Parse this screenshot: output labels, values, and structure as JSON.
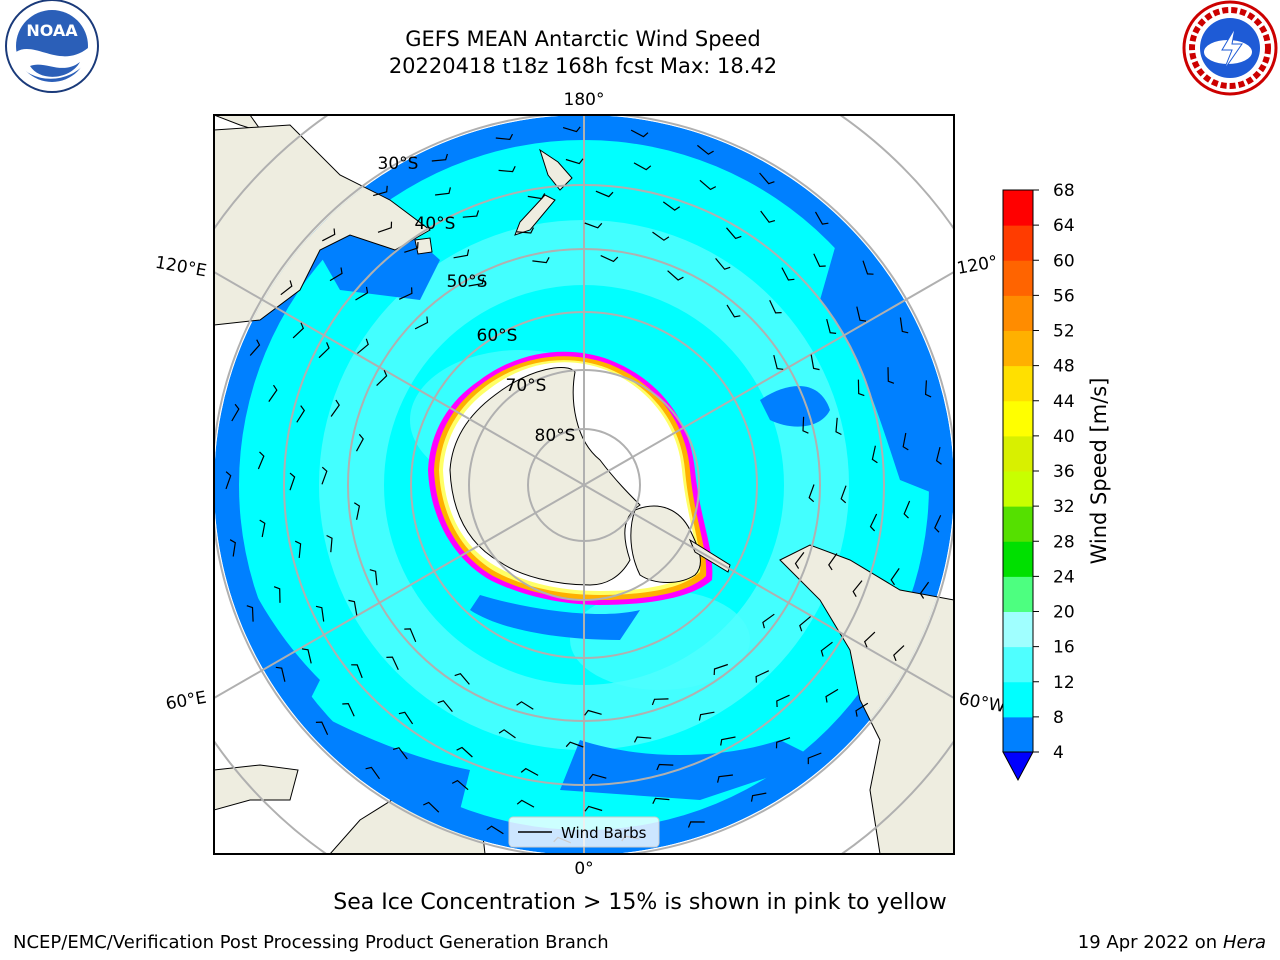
{
  "header": {
    "title_line1": "GEFS MEAN Antarctic Wind Speed",
    "title_line2": "20220418 t18z 168h fcst   Max: 18.42"
  },
  "map": {
    "projection": "south-polar-stereographic",
    "lon_labels": {
      "top": "180°",
      "bottom": "0°",
      "left_upper": "120°E",
      "left_lower": "60°E",
      "right_upper": "120°",
      "right_lower": "60°W"
    },
    "lat_labels": [
      "30°S",
      "40°S",
      "50°S",
      "60°S",
      "70°S",
      "80°S"
    ],
    "legend_label": "Wind Barbs",
    "ocean_colors": {
      "c4_8": "#0080ff",
      "c8_12": "#00ffff",
      "c12_16": "#4fffff",
      "c16_20": "#a0ffff"
    },
    "land_color": "#eeede0",
    "ice_edge_colors": [
      "#ff00ff",
      "#ffb000",
      "#ffff66"
    ]
  },
  "colorbar": {
    "label": "Wind Speed [m/s]",
    "ticks": [
      "4",
      "8",
      "12",
      "16",
      "20",
      "24",
      "28",
      "32",
      "36",
      "40",
      "44",
      "48",
      "52",
      "56",
      "60",
      "64",
      "68"
    ],
    "colors": [
      "#0080ff",
      "#00ffff",
      "#4fffff",
      "#a0ffff",
      "#4dff80",
      "#00e000",
      "#55e000",
      "#c8ff00",
      "#d8f000",
      "#ffff00",
      "#ffe000",
      "#ffb000",
      "#ff8c00",
      "#ff6400",
      "#ff3c00",
      "#ff0000"
    ],
    "extend_color": "#0000ff"
  },
  "caption": "Sea Ice Concentration > 15% is shown in pink to yellow",
  "footer": {
    "left": "NCEP/EMC/Verification Post Processing Product Generation Branch",
    "right_prefix": "19 Apr 2022 on ",
    "right_host": "Hera"
  },
  "logos": {
    "noaa_text": "NOAA"
  }
}
